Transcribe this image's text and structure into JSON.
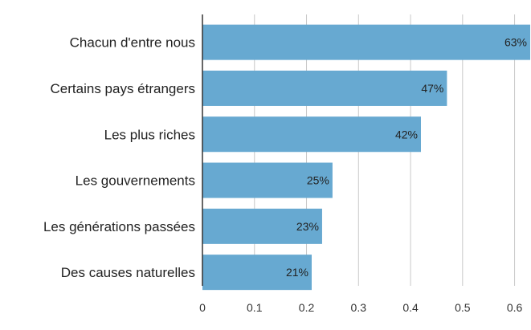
{
  "chart_data": {
    "type": "bar",
    "orientation": "horizontal",
    "categories": [
      "Chacun d'entre nous",
      "Certains pays étrangers",
      "Les plus riches",
      "Les gouvernements",
      "Les générations passées",
      "Des causes naturelles"
    ],
    "values": [
      0.63,
      0.47,
      0.42,
      0.25,
      0.23,
      0.21
    ],
    "value_labels": [
      "63%",
      "47%",
      "42%",
      "25%",
      "23%",
      "21%"
    ],
    "xticks": [
      0,
      0.1,
      0.2,
      0.3,
      0.4,
      0.5,
      0.6
    ],
    "xtick_labels": [
      "0",
      "0.1",
      "0.2",
      "0.3",
      "0.4",
      "0.5",
      "0.6"
    ],
    "xlim": [
      0,
      0.63
    ],
    "title": "",
    "xlabel": "",
    "ylabel": "",
    "grid": true,
    "bar_color": "#67a9d1"
  }
}
